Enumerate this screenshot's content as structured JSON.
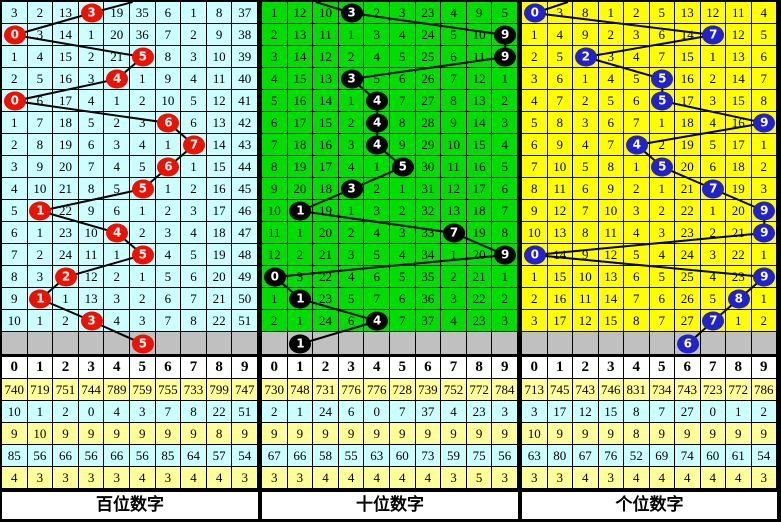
{
  "chart_data": {
    "type": "table",
    "colors": {
      "gray_row": "#C0C0C0",
      "header_bg": "#FFFFFF",
      "line": "#000000",
      "stats_row_bg": [
        "#FFFF99",
        "#CCFFFF",
        "#FFFF99",
        "#CCFFFF",
        "#FFFF99"
      ]
    },
    "drawn_sequences": {
      "hundreds": [
        3,
        0,
        5,
        4,
        0,
        6,
        7,
        6,
        5,
        1,
        4,
        5,
        2,
        1,
        3
      ],
      "tens": [
        3,
        9,
        9,
        3,
        4,
        4,
        4,
        5,
        3,
        1,
        7,
        9,
        0,
        1,
        4
      ],
      "units": [
        0,
        7,
        2,
        5,
        5,
        9,
        4,
        5,
        7,
        9,
        9,
        0,
        9,
        8,
        7
      ]
    },
    "pending_marks": {
      "hundreds": 5,
      "tens": 1,
      "units": 6
    },
    "panels": [
      {
        "id": "hundreds",
        "label": "百位数字",
        "cell_bg": "#CCFFFF",
        "circle_color": "#EE1100",
        "top_exit_colf": 5.1,
        "headers": [
          "0",
          "1",
          "2",
          "3",
          "4",
          "5",
          "6",
          "7",
          "8",
          "9"
        ],
        "rows": [
          {
            "drawn": 3,
            "cells": [
              "3",
              "2",
              "13",
              "3",
              "19",
              "35",
              "6",
              "1",
              "8",
              "37"
            ]
          },
          {
            "drawn": 0,
            "cells": [
              "0",
              "3",
              "14",
              "1",
              "20",
              "36",
              "7",
              "2",
              "9",
              "38"
            ]
          },
          {
            "drawn": 5,
            "cells": [
              "1",
              "4",
              "15",
              "2",
              "21",
              "5",
              "8",
              "3",
              "10",
              "39"
            ]
          },
          {
            "drawn": 4,
            "cells": [
              "2",
              "5",
              "16",
              "3",
              "4",
              "1",
              "9",
              "4",
              "11",
              "40"
            ]
          },
          {
            "drawn": 0,
            "cells": [
              "0",
              "6",
              "17",
              "4",
              "1",
              "2",
              "10",
              "5",
              "12",
              "41"
            ]
          },
          {
            "drawn": 6,
            "cells": [
              "1",
              "7",
              "18",
              "5",
              "2",
              "3",
              "6",
              "6",
              "13",
              "42"
            ]
          },
          {
            "drawn": 7,
            "cells": [
              "2",
              "8",
              "19",
              "6",
              "3",
              "4",
              "1",
              "7",
              "14",
              "43"
            ]
          },
          {
            "drawn": 6,
            "cells": [
              "3",
              "9",
              "20",
              "7",
              "4",
              "5",
              "6",
              "1",
              "15",
              "44"
            ]
          },
          {
            "drawn": 5,
            "cells": [
              "4",
              "10",
              "21",
              "8",
              "5",
              "5",
              "1",
              "2",
              "16",
              "45"
            ]
          },
          {
            "drawn": 1,
            "cells": [
              "5",
              "1",
              "22",
              "9",
              "6",
              "1",
              "2",
              "3",
              "17",
              "46"
            ]
          },
          {
            "drawn": 4,
            "cells": [
              "6",
              "1",
              "23",
              "10",
              "4",
              "2",
              "3",
              "4",
              "18",
              "47"
            ]
          },
          {
            "drawn": 5,
            "cells": [
              "7",
              "2",
              "24",
              "11",
              "1",
              "5",
              "4",
              "5",
              "19",
              "48"
            ]
          },
          {
            "drawn": 2,
            "cells": [
              "8",
              "3",
              "2",
              "12",
              "2",
              "1",
              "5",
              "6",
              "20",
              "49"
            ]
          },
          {
            "drawn": 1,
            "cells": [
              "9",
              "1",
              "1",
              "13",
              "3",
              "2",
              "6",
              "7",
              "21",
              "50"
            ]
          },
          {
            "drawn": 3,
            "cells": [
              "10",
              "1",
              "2",
              "3",
              "4",
              "3",
              "7",
              "8",
              "22",
              "51"
            ]
          }
        ],
        "pending_drawn": 5,
        "stats": [
          [
            "740",
            "719",
            "751",
            "744",
            "789",
            "759",
            "755",
            "733",
            "799",
            "747"
          ],
          [
            "10",
            "1",
            "2",
            "0",
            "4",
            "3",
            "7",
            "8",
            "22",
            "51"
          ],
          [
            "9",
            "10",
            "9",
            "9",
            "9",
            "9",
            "9",
            "9",
            "8",
            "9"
          ],
          [
            "85",
            "56",
            "66",
            "56",
            "66",
            "56",
            "85",
            "64",
            "57",
            "54"
          ],
          [
            "4",
            "3",
            "3",
            "3",
            "3",
            "4",
            "3",
            "4",
            "4",
            "3"
          ]
        ]
      },
      {
        "id": "tens",
        "label": "十位数字",
        "cell_bg": "#00DD00",
        "circle_color": "#000000",
        "top_exit_colf": 2.1,
        "headers": [
          "0",
          "1",
          "2",
          "3",
          "4",
          "5",
          "6",
          "7",
          "8",
          "9"
        ],
        "rows": [
          {
            "drawn": 3,
            "cells": [
              "1",
              "12",
              "10",
              "3",
              "2",
              "3",
              "23",
              "4",
              "9",
              "5"
            ]
          },
          {
            "drawn": 9,
            "cells": [
              "2",
              "13",
              "11",
              "1",
              "3",
              "4",
              "24",
              "5",
              "10",
              "9"
            ]
          },
          {
            "drawn": 9,
            "cells": [
              "3",
              "14",
              "12",
              "2",
              "4",
              "5",
              "25",
              "6",
              "11",
              "9"
            ]
          },
          {
            "drawn": 3,
            "cells": [
              "4",
              "15",
              "13",
              "3",
              "5",
              "6",
              "26",
              "7",
              "12",
              "1"
            ]
          },
          {
            "drawn": 4,
            "cells": [
              "5",
              "16",
              "14",
              "1",
              "4",
              "7",
              "27",
              "8",
              "13",
              "2"
            ]
          },
          {
            "drawn": 4,
            "cells": [
              "6",
              "17",
              "15",
              "2",
              "4",
              "8",
              "28",
              "9",
              "14",
              "3"
            ]
          },
          {
            "drawn": 4,
            "cells": [
              "7",
              "18",
              "16",
              "3",
              "4",
              "9",
              "29",
              "10",
              "15",
              "4"
            ]
          },
          {
            "drawn": 5,
            "cells": [
              "8",
              "19",
              "17",
              "4",
              "1",
              "5",
              "30",
              "11",
              "16",
              "5"
            ]
          },
          {
            "drawn": 3,
            "cells": [
              "9",
              "20",
              "18",
              "3",
              "2",
              "1",
              "31",
              "12",
              "17",
              "6"
            ]
          },
          {
            "drawn": 1,
            "cells": [
              "10",
              "1",
              "19",
              "1",
              "3",
              "2",
              "32",
              "13",
              "18",
              "7"
            ]
          },
          {
            "drawn": 7,
            "cells": [
              "11",
              "1",
              "20",
              "2",
              "4",
              "3",
              "33",
              "7",
              "19",
              "8"
            ]
          },
          {
            "drawn": 9,
            "cells": [
              "12",
              "2",
              "21",
              "3",
              "5",
              "4",
              "34",
              "1",
              "20",
              "9"
            ]
          },
          {
            "drawn": 0,
            "cells": [
              "0",
              "3",
              "22",
              "4",
              "6",
              "5",
              "35",
              "2",
              "21",
              "1"
            ]
          },
          {
            "drawn": 1,
            "cells": [
              "1",
              "1",
              "23",
              "5",
              "7",
              "6",
              "36",
              "3",
              "22",
              "2"
            ]
          },
          {
            "drawn": 4,
            "cells": [
              "2",
              "1",
              "24",
              "6",
              "4",
              "7",
              "37",
              "4",
              "23",
              "3"
            ]
          }
        ],
        "pending_drawn": 1,
        "stats": [
          [
            "730",
            "748",
            "731",
            "776",
            "776",
            "728",
            "739",
            "752",
            "772",
            "784"
          ],
          [
            "2",
            "1",
            "24",
            "6",
            "0",
            "7",
            "37",
            "4",
            "23",
            "3"
          ],
          [
            "9",
            "9",
            "9",
            "9",
            "9",
            "9",
            "9",
            "9",
            "9",
            "9"
          ],
          [
            "67",
            "66",
            "58",
            "55",
            "63",
            "60",
            "73",
            "59",
            "75",
            "56"
          ],
          [
            "3",
            "3",
            "4",
            "4",
            "4",
            "4",
            "4",
            "3",
            "5",
            "3"
          ]
        ]
      },
      {
        "id": "units",
        "label": "个位数字",
        "cell_bg": "#FFFF00",
        "circle_color": "#2222CC",
        "top_exit_colf": 1.8,
        "headers": [
          "0",
          "1",
          "2",
          "3",
          "4",
          "5",
          "6",
          "7",
          "8",
          "9"
        ],
        "rows": [
          {
            "drawn": 0,
            "cells": [
              "0",
              "3",
              "8",
              "1",
              "2",
              "5",
              "13",
              "12",
              "11",
              "4"
            ]
          },
          {
            "drawn": 7,
            "cells": [
              "1",
              "4",
              "9",
              "2",
              "3",
              "6",
              "14",
              "7",
              "12",
              "5"
            ]
          },
          {
            "drawn": 2,
            "cells": [
              "2",
              "5",
              "2",
              "3",
              "4",
              "7",
              "15",
              "1",
              "13",
              "6"
            ]
          },
          {
            "drawn": 5,
            "cells": [
              "3",
              "6",
              "1",
              "4",
              "5",
              "5",
              "16",
              "2",
              "14",
              "7"
            ]
          },
          {
            "drawn": 5,
            "cells": [
              "4",
              "7",
              "2",
              "5",
              "6",
              "5",
              "17",
              "3",
              "15",
              "8"
            ]
          },
          {
            "drawn": 9,
            "cells": [
              "5",
              "8",
              "3",
              "6",
              "7",
              "1",
              "18",
              "4",
              "16",
              "9"
            ]
          },
          {
            "drawn": 4,
            "cells": [
              "6",
              "9",
              "4",
              "7",
              "4",
              "2",
              "19",
              "5",
              "17",
              "1"
            ]
          },
          {
            "drawn": 5,
            "cells": [
              "7",
              "10",
              "5",
              "8",
              "1",
              "5",
              "20",
              "6",
              "18",
              "2"
            ]
          },
          {
            "drawn": 7,
            "cells": [
              "8",
              "11",
              "6",
              "9",
              "2",
              "1",
              "21",
              "7",
              "19",
              "3"
            ]
          },
          {
            "drawn": 9,
            "cells": [
              "9",
              "12",
              "7",
              "10",
              "3",
              "2",
              "22",
              "1",
              "20",
              "9"
            ]
          },
          {
            "drawn": 9,
            "cells": [
              "10",
              "13",
              "8",
              "11",
              "4",
              "3",
              "23",
              "2",
              "21",
              "9"
            ]
          },
          {
            "drawn": 0,
            "cells": [
              "0",
              "14",
              "9",
              "12",
              "5",
              "4",
              "24",
              "3",
              "22",
              "1"
            ]
          },
          {
            "drawn": 9,
            "cells": [
              "1",
              "15",
              "10",
              "13",
              "6",
              "5",
              "25",
              "4",
              "23",
              "9"
            ]
          },
          {
            "drawn": 8,
            "cells": [
              "2",
              "16",
              "11",
              "14",
              "7",
              "6",
              "26",
              "5",
              "8",
              "1"
            ]
          },
          {
            "drawn": 7,
            "cells": [
              "3",
              "17",
              "12",
              "15",
              "8",
              "7",
              "27",
              "7",
              "1",
              "2"
            ]
          }
        ],
        "pending_drawn": 6,
        "stats": [
          [
            "713",
            "745",
            "743",
            "746",
            "831",
            "734",
            "743",
            "723",
            "772",
            "786"
          ],
          [
            "3",
            "17",
            "12",
            "15",
            "8",
            "7",
            "27",
            "0",
            "1",
            "2"
          ],
          [
            "10",
            "9",
            "9",
            "9",
            "8",
            "9",
            "9",
            "9",
            "9",
            "9"
          ],
          [
            "63",
            "80",
            "67",
            "76",
            "52",
            "69",
            "74",
            "60",
            "61",
            "54"
          ],
          [
            "3",
            "3",
            "4",
            "3",
            "4",
            "4",
            "4",
            "4",
            "4",
            "3"
          ]
        ]
      }
    ]
  }
}
